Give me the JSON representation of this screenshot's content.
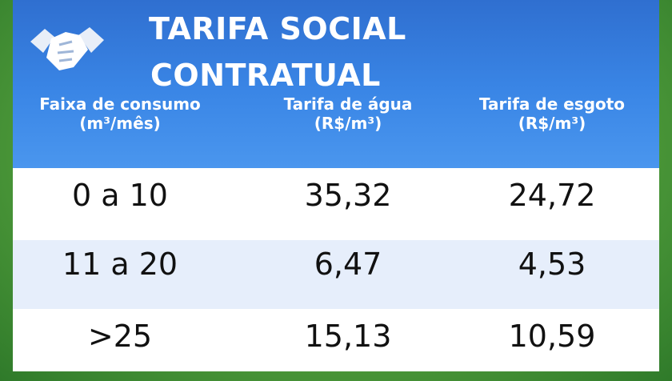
{
  "header": {
    "title_line1": "TARIFA SOCIAL",
    "title_line2": "CONTRATUAL"
  },
  "table": {
    "columns": [
      [
        "Faixa de consumo",
        "(m³/mês)"
      ],
      [
        "Tarifa de água",
        "(R$/m³)"
      ],
      [
        "Tarifa de esgoto",
        "(R$/m³)"
      ]
    ],
    "rows": [
      [
        "0 a 10",
        "35,32",
        "24,72"
      ],
      [
        "11 a 20",
        "6,47",
        "4,53"
      ],
      [
        ">25",
        "15,13",
        "10,59"
      ]
    ]
  }
}
